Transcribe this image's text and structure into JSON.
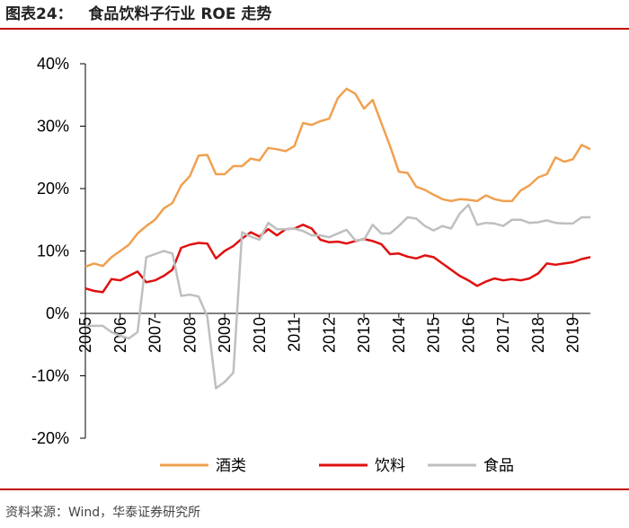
{
  "header": {
    "title": "图表24：   食品饮料子行业 ROE 走势"
  },
  "footer": {
    "source": "资料来源：Wind，华泰证券研究所"
  },
  "chart_data": {
    "type": "line",
    "title": "食品饮料子行业 ROE 走势",
    "xlabel": "",
    "ylabel": "",
    "ylim": [
      -20,
      40
    ],
    "xlim": [
      2005,
      2019.5
    ],
    "y_ticks": [
      40,
      30,
      20,
      10,
      0,
      -10,
      -20
    ],
    "y_tick_labels": [
      "40%",
      "30%",
      "20%",
      "10%",
      "0%",
      "-10%",
      "-20%"
    ],
    "x_tick_labels": [
      "2005",
      "2006",
      "2007",
      "2008",
      "2009",
      "2010",
      "2011",
      "2012",
      "2013",
      "2014",
      "2015",
      "2016",
      "2017",
      "2018",
      "2019"
    ],
    "legend_position": "bottom",
    "grid": false,
    "series": [
      {
        "name": "酒类",
        "color": "#f0a050",
        "x": [
          2005,
          2005.25,
          2005.5,
          2005.75,
          2006,
          2006.25,
          2006.5,
          2006.75,
          2007,
          2007.25,
          2007.5,
          2007.75,
          2008,
          2008.25,
          2008.5,
          2008.75,
          2009,
          2009.25,
          2009.5,
          2009.75,
          2010,
          2010.25,
          2010.5,
          2010.75,
          2011,
          2011.25,
          2011.5,
          2011.75,
          2012,
          2012.25,
          2012.5,
          2012.75,
          2013,
          2013.25,
          2013.5,
          2013.75,
          2014,
          2014.25,
          2014.5,
          2014.75,
          2015,
          2015.25,
          2015.5,
          2015.75,
          2016,
          2016.25,
          2016.5,
          2016.75,
          2017,
          2017.25,
          2017.5,
          2017.75,
          2018,
          2018.25,
          2018.5,
          2018.75,
          2019,
          2019.25,
          2019.5
        ],
        "values": [
          7.5,
          8.0,
          7.6,
          9.0,
          10.0,
          11.0,
          12.8,
          14.0,
          15.0,
          16.8,
          17.7,
          20.5,
          22.0,
          25.3,
          25.4,
          22.3,
          22.3,
          23.6,
          23.6,
          24.8,
          24.5,
          26.5,
          26.3,
          26.0,
          26.8,
          30.5,
          30.2,
          30.8,
          31.2,
          34.5,
          36.0,
          35.2,
          32.8,
          34.2,
          30.5,
          26.8,
          22.7,
          22.5,
          20.3,
          19.8,
          19.0,
          18.3,
          18.0,
          18.3,
          18.2,
          18.0,
          18.9,
          18.3,
          18.0,
          18.0,
          19.7,
          20.5,
          21.8,
          22.3,
          25.0,
          24.3,
          24.7,
          27.0,
          26.3
        ]
      },
      {
        "name": "饮料",
        "color": "#e01010",
        "x": [
          2005,
          2005.25,
          2005.5,
          2005.75,
          2006,
          2006.25,
          2006.5,
          2006.75,
          2007,
          2007.25,
          2007.5,
          2007.75,
          2008,
          2008.25,
          2008.5,
          2008.75,
          2009,
          2009.25,
          2009.5,
          2009.75,
          2010,
          2010.25,
          2010.5,
          2010.75,
          2011,
          2011.25,
          2011.5,
          2011.75,
          2012,
          2012.25,
          2012.5,
          2012.75,
          2013,
          2013.25,
          2013.5,
          2013.75,
          2014,
          2014.25,
          2014.5,
          2014.75,
          2015,
          2015.25,
          2015.5,
          2015.75,
          2016,
          2016.25,
          2016.5,
          2016.75,
          2017,
          2017.25,
          2017.5,
          2017.75,
          2018,
          2018.25,
          2018.5,
          2018.75,
          2019,
          2019.25,
          2019.5
        ],
        "values": [
          4.0,
          3.6,
          3.4,
          5.5,
          5.3,
          6.0,
          6.7,
          5.0,
          5.3,
          6.0,
          7.0,
          10.5,
          11.0,
          11.3,
          11.2,
          8.8,
          10.0,
          10.8,
          12.0,
          13.0,
          12.3,
          13.5,
          12.5,
          13.5,
          13.6,
          14.2,
          13.6,
          11.8,
          11.4,
          11.5,
          11.2,
          11.6,
          11.9,
          11.6,
          11.1,
          9.5,
          9.6,
          9.1,
          8.8,
          9.3,
          9.0,
          8.0,
          7.0,
          6.0,
          5.3,
          4.4,
          5.1,
          5.6,
          5.3,
          5.5,
          5.3,
          5.6,
          6.4,
          8.0,
          7.8,
          8.0,
          8.2,
          8.7,
          9.0
        ]
      },
      {
        "name": "食品",
        "color": "#bfbfbf",
        "x": [
          2005,
          2005.25,
          2005.5,
          2005.75,
          2006,
          2006.25,
          2006.5,
          2006.75,
          2007,
          2007.25,
          2007.5,
          2007.75,
          2008,
          2008.25,
          2008.5,
          2008.75,
          2009,
          2009.25,
          2009.5,
          2009.75,
          2010,
          2010.25,
          2010.5,
          2010.75,
          2011,
          2011.25,
          2011.5,
          2011.75,
          2012,
          2012.25,
          2012.5,
          2012.75,
          2013,
          2013.25,
          2013.5,
          2013.75,
          2014,
          2014.25,
          2014.5,
          2014.75,
          2015,
          2015.25,
          2015.5,
          2015.75,
          2016,
          2016.25,
          2016.5,
          2016.75,
          2017,
          2017.25,
          2017.5,
          2017.75,
          2018,
          2018.25,
          2018.5,
          2018.75,
          2019,
          2019.25,
          2019.5
        ],
        "values": [
          -2.0,
          -2.0,
          -2.0,
          -3.0,
          -3.6,
          -4.0,
          -3.0,
          9.0,
          9.5,
          10.0,
          9.6,
          2.8,
          3.0,
          2.7,
          -0.5,
          -12.0,
          -11.0,
          -9.5,
          13.0,
          12.3,
          11.8,
          14.5,
          13.5,
          13.5,
          13.6,
          13.2,
          12.5,
          12.5,
          12.2,
          12.8,
          13.4,
          11.7,
          11.8,
          14.2,
          12.8,
          12.8,
          14.0,
          15.4,
          15.2,
          14.0,
          13.3,
          14.0,
          13.6,
          16.0,
          17.4,
          14.2,
          14.5,
          14.4,
          14.0,
          15.0,
          15.0,
          14.5,
          14.6,
          14.9,
          14.5,
          14.4,
          14.4,
          15.4,
          15.4
        ]
      }
    ]
  }
}
